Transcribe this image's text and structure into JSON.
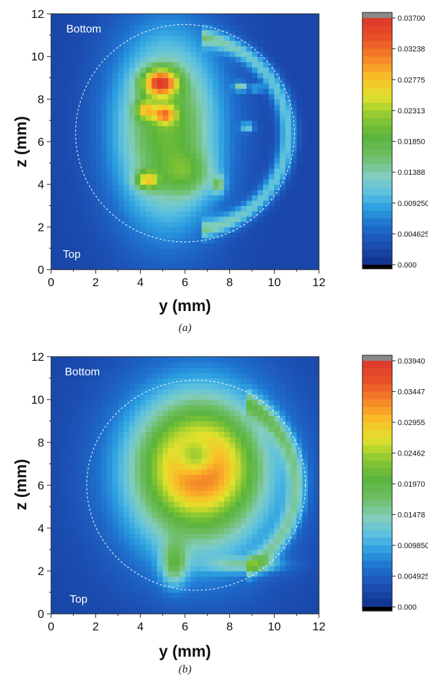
{
  "chart_data": [
    {
      "type": "heatmap",
      "panel_caption": "(a)",
      "xlabel": "y (mm)",
      "ylabel": "z (mm)",
      "xlim": [
        0,
        12
      ],
      "ylim": [
        0,
        12
      ],
      "x_ticks": [
        0,
        2,
        4,
        6,
        8,
        10,
        12
      ],
      "y_ticks": [
        0,
        2,
        4,
        6,
        8,
        10,
        12
      ],
      "annotations": [
        "Bottom",
        "Top"
      ],
      "sample_boundary": {
        "center": [
          6.0,
          6.4
        ],
        "radius_y": 4.9,
        "radius_z": 5.1
      },
      "colorbar": {
        "range": [
          0,
          0.037
        ],
        "tick_labels": [
          "0.03700",
          "0.03238",
          "0.02775",
          "0.02313",
          "0.01850",
          "0.01388",
          "0.009250",
          "0.004625",
          "0.000"
        ]
      },
      "blobs": [
        {
          "y": 5.2,
          "z": 6.6,
          "sy": 1.7,
          "sz": 3.2,
          "amp": 0.018
        },
        {
          "y": 4.9,
          "z": 8.8,
          "sy": 0.55,
          "sz": 0.45,
          "amp": 0.021
        },
        {
          "y": 4.2,
          "z": 7.5,
          "sy": 0.3,
          "sz": 0.3,
          "amp": 0.012
        },
        {
          "y": 5.1,
          "z": 7.3,
          "sy": 0.35,
          "sz": 0.3,
          "amp": 0.013
        },
        {
          "y": 4.3,
          "z": 4.2,
          "sy": 0.35,
          "sz": 0.3,
          "amp": 0.014
        },
        {
          "y": 7.5,
          "z": 4.0,
          "sy": 0.2,
          "sz": 0.3,
          "amp": 0.009
        },
        {
          "y": 6.2,
          "z": 4.5,
          "sy": 0.8,
          "sz": 0.7,
          "amp": 0.006
        },
        {
          "y": 8.5,
          "z": 8.6,
          "sy": 0.2,
          "sz": 0.15,
          "amp": 0.011
        },
        {
          "y": 9.2,
          "z": 8.5,
          "sy": 0.2,
          "sz": 0.12,
          "amp": 0.008
        },
        {
          "y": 8.8,
          "z": 6.7,
          "sy": 0.2,
          "sz": 0.15,
          "amp": 0.009
        }
      ],
      "rings": [
        {
          "cy": 6.0,
          "cz": 6.4,
          "r": 4.6,
          "w": 0.28,
          "amp": 0.009,
          "y_min": 6.8
        }
      ]
    },
    {
      "type": "heatmap",
      "panel_caption": "(b)",
      "xlabel": "y (mm)",
      "ylabel": "z (mm)",
      "xlim": [
        0,
        12
      ],
      "ylim": [
        0,
        12
      ],
      "x_ticks": [
        0,
        2,
        4,
        6,
        8,
        10,
        12
      ],
      "y_ticks": [
        0,
        2,
        4,
        6,
        8,
        10,
        12
      ],
      "annotations": [
        "Bottom",
        "Top"
      ],
      "sample_boundary": {
        "center": [
          6.5,
          6.0
        ],
        "radius_y": 4.9,
        "radius_z": 4.9
      },
      "colorbar": {
        "range": [
          0,
          0.0394
        ],
        "tick_labels": [
          "0.03940",
          "0.03447",
          "0.02955",
          "0.02462",
          "0.01970",
          "0.01478",
          "0.009850",
          "0.004925",
          "0.000"
        ]
      },
      "blobs": [
        {
          "y": 6.6,
          "z": 6.6,
          "sy": 2.4,
          "sz": 2.9,
          "amp": 0.022
        },
        {
          "y": 6.7,
          "z": 7.0,
          "sy": 1.6,
          "sz": 1.6,
          "amp": 0.012
        },
        {
          "y": 6.5,
          "z": 7.3,
          "sy": 0.6,
          "sz": 0.6,
          "amp": -0.011
        },
        {
          "y": 5.5,
          "z": 2.3,
          "sy": 0.4,
          "sz": 0.7,
          "amp": 0.011
        },
        {
          "y": 8.8,
          "z": 2.3,
          "sy": 1.2,
          "sz": 0.25,
          "amp": 0.008
        }
      ],
      "rings": [
        {
          "cy": 6.5,
          "cz": 6.0,
          "r": 4.5,
          "w": 0.3,
          "amp": 0.009,
          "y_min": 8.8
        }
      ]
    }
  ]
}
